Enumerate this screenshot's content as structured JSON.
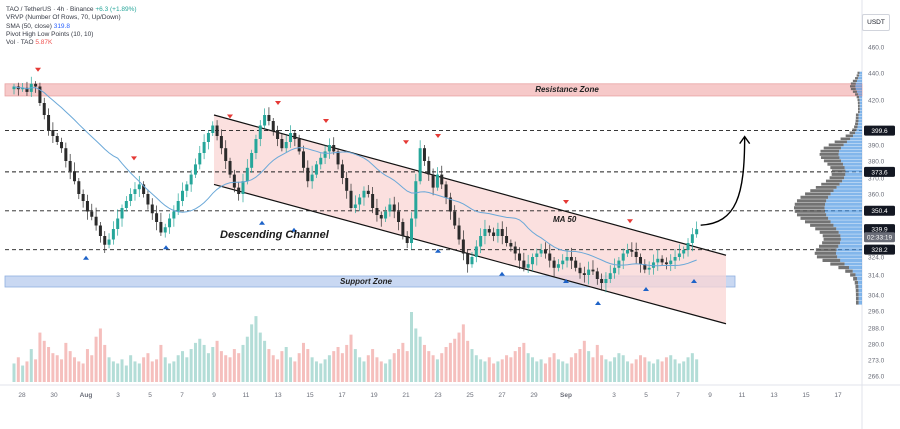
{
  "legend": {
    "line1": {
      "symbol": "TAO / TetherUS · 4h · Binance",
      "change": "+6.3 (+1.89%)"
    },
    "line2": {
      "name": "VRVP (Number Of Rows, 70, Up/Down)"
    },
    "line3": {
      "name": "SMA (50, close)",
      "value": "319.8"
    },
    "line4": {
      "name": "Pivot High Low Points (10, 10)"
    },
    "line5": {
      "name": "Vol · TAO",
      "value": "5.87K"
    }
  },
  "currency_label": "USDT",
  "colors": {
    "bull": "#26a69a",
    "bear": "#2b2b2b",
    "resistance_fill": "#f6c9c9",
    "support_fill": "#c9d8f2",
    "channel_fill": "#f9d6d4",
    "sma": "#6aa8d8",
    "pivot_high": "#e53935",
    "pivot_low": "#1e63c8"
  },
  "annotations": {
    "resistance_zone": "Resistance Zone",
    "support_zone": "Support Zone",
    "descending_channel": "Descending Channel",
    "ma50": "MA 50"
  },
  "chart_data": {
    "type": "candlestick",
    "title": "TAO / TetherUS · 4h · Binance",
    "y_ticks": [
      460.0,
      440.0,
      420.0,
      390.0,
      380.0,
      370.0,
      360.0,
      324.0,
      314.0,
      304.0,
      296.0,
      288.0,
      280.0,
      273.0,
      266.0
    ],
    "x_ticks": [
      "28",
      "30",
      "Aug",
      "3",
      "5",
      "7",
      "9",
      "11",
      "13",
      "15",
      "17",
      "19",
      "21",
      "23",
      "25",
      "27",
      "29",
      "Sep",
      "3",
      "5",
      "7",
      "9",
      "11",
      "13",
      "15",
      "17"
    ],
    "price_labels": [
      {
        "text": "399.6",
        "value": 399.6,
        "style": "dark"
      },
      {
        "text": "373.6",
        "value": 373.6,
        "style": "dark"
      },
      {
        "text": "350.4",
        "value": 350.4,
        "style": "dark"
      },
      {
        "text": "339.9",
        "value": 339.9,
        "style": "dark"
      },
      {
        "text": "02:33:19",
        "value": 335.3,
        "style": "grey"
      },
      {
        "text": "328.2",
        "value": 328.2,
        "style": "dark"
      }
    ],
    "horizontal_levels": [
      399.6,
      373.6,
      350.4,
      328.2
    ],
    "resistance_zone": [
      423.0,
      432.0
    ],
    "support_zone": [
      308.0,
      313.5
    ],
    "current_price": 339.9,
    "sma_period": 50,
    "sma_last": 319.8,
    "volume_last": "5.87K",
    "visible_range": [
      "2024-07-28",
      "2024-09-18"
    ],
    "channel": {
      "upper": [
        [
          "2024-08-09",
          410.0
        ],
        [
          "2024-09-10",
          325.0
        ]
      ],
      "lower": [
        [
          "2024-08-09",
          366.0
        ],
        [
          "2024-09-10",
          290.0
        ]
      ]
    },
    "projection": {
      "from": 339.9,
      "to": 399.6
    },
    "pivot_highs": [
      {
        "date": "2024-07-29",
        "value": 438.0
      },
      {
        "date": "2024-08-04",
        "value": 378.0
      },
      {
        "date": "2024-08-10",
        "value": 405.0
      },
      {
        "date": "2024-08-13",
        "value": 414.0
      },
      {
        "date": "2024-08-16",
        "value": 402.0
      },
      {
        "date": "2024-08-21",
        "value": 388.0
      },
      {
        "date": "2024-08-23",
        "value": 392.0
      },
      {
        "date": "2024-08-31",
        "value": 352.0
      },
      {
        "date": "2024-09-04",
        "value": 341.0
      }
    ],
    "pivot_lows": [
      {
        "date": "2024-08-01",
        "value": 327.0
      },
      {
        "date": "2024-08-06",
        "value": 333.0
      },
      {
        "date": "2024-08-12",
        "value": 347.0
      },
      {
        "date": "2024-08-14",
        "value": 343.0
      },
      {
        "date": "2024-08-23",
        "value": 331.0
      },
      {
        "date": "2024-08-27",
        "value": 318.0
      },
      {
        "date": "2024-08-31",
        "value": 314.0
      },
      {
        "date": "2024-09-02",
        "value": 303.0
      },
      {
        "date": "2024-09-05",
        "value": 310.0
      },
      {
        "date": "2024-09-08",
        "value": 314.0
      }
    ],
    "closes": [
      430,
      428,
      429,
      426,
      432,
      430,
      418,
      410,
      400,
      396,
      392,
      388,
      380,
      374,
      368,
      360,
      356,
      350,
      347,
      342,
      336,
      331,
      334,
      340,
      346,
      352,
      356,
      360,
      363,
      366,
      360,
      354,
      349,
      344,
      338,
      341,
      346,
      350,
      356,
      362,
      366,
      372,
      378,
      385,
      392,
      398,
      403,
      396,
      388,
      380,
      372,
      364,
      360,
      368,
      376,
      385,
      394,
      403,
      410,
      406,
      400,
      394,
      388,
      392,
      398,
      394,
      386,
      376,
      368,
      372,
      378,
      382,
      386,
      390,
      386,
      378,
      370,
      362,
      352,
      354,
      358,
      362,
      360,
      352,
      348,
      346,
      350,
      354,
      350,
      344,
      336,
      332,
      346,
      368,
      388,
      380,
      372,
      364,
      372,
      366,
      358,
      350,
      342,
      334,
      326,
      320,
      324,
      330,
      336,
      340,
      338,
      336,
      340,
      336,
      332,
      330,
      326,
      322,
      318,
      320,
      324,
      326,
      328,
      326,
      322,
      318,
      320,
      322,
      324,
      322,
      318,
      315,
      314,
      317,
      316,
      312,
      310,
      312,
      315,
      318,
      322,
      326,
      328,
      327,
      324,
      320,
      317,
      318,
      321,
      323,
      321,
      320,
      322,
      324,
      326,
      328,
      332,
      337,
      339.9
    ],
    "volume": [
      0.9,
      1.2,
      0.8,
      1.0,
      1.6,
      1.1,
      2.4,
      2.0,
      1.7,
      1.4,
      1.3,
      1.1,
      1.9,
      1.5,
      1.2,
      1.0,
      0.9,
      1.6,
      1.3,
      2.2,
      2.6,
      1.8,
      1.2,
      1.0,
      0.9,
      1.1,
      0.8,
      1.3,
      1.0,
      0.9,
      1.2,
      1.4,
      1.0,
      1.1,
      1.8,
      1.2,
      0.9,
      1.0,
      1.3,
      1.5,
      1.2,
      1.6,
      1.9,
      2.1,
      1.8,
      1.4,
      1.7,
      2.0,
      1.5,
      1.3,
      1.2,
      1.6,
      1.4,
      1.8,
      2.2,
      2.8,
      3.2,
      2.4,
      2.0,
      1.6,
      1.3,
      1.1,
      1.5,
      1.7,
      1.2,
      1.0,
      1.4,
      1.9,
      1.6,
      1.2,
      1.0,
      0.9,
      1.1,
      1.3,
      1.5,
      1.7,
      1.4,
      1.8,
      2.3,
      1.6,
      1.2,
      1.0,
      1.3,
      1.6,
      1.2,
      1.0,
      0.9,
      1.1,
      1.4,
      1.6,
      1.9,
      1.5,
      3.4,
      2.6,
      2.2,
      1.8,
      1.5,
      1.3,
      1.1,
      1.4,
      1.7,
      1.9,
      2.1,
      2.4,
      2.8,
      2.0,
      1.6,
      1.3,
      1.1,
      1.0,
      1.2,
      0.9,
      1.0,
      1.1,
      1.3,
      1.2,
      1.5,
      1.7,
      1.9,
      1.4,
      1.2,
      1.0,
      1.1,
      0.9,
      1.2,
      1.4,
      1.1,
      1.0,
      0.9,
      1.2,
      1.4,
      1.6,
      2.0,
      1.5,
      1.2,
      1.8,
      1.3,
      1.1,
      1.0,
      1.2,
      1.4,
      1.3,
      1.0,
      0.9,
      1.1,
      1.3,
      1.2,
      1.0,
      0.9,
      1.1,
      1.0,
      1.2,
      1.3,
      1.1,
      0.9,
      1.0,
      1.2,
      1.4,
      1.1
    ]
  }
}
